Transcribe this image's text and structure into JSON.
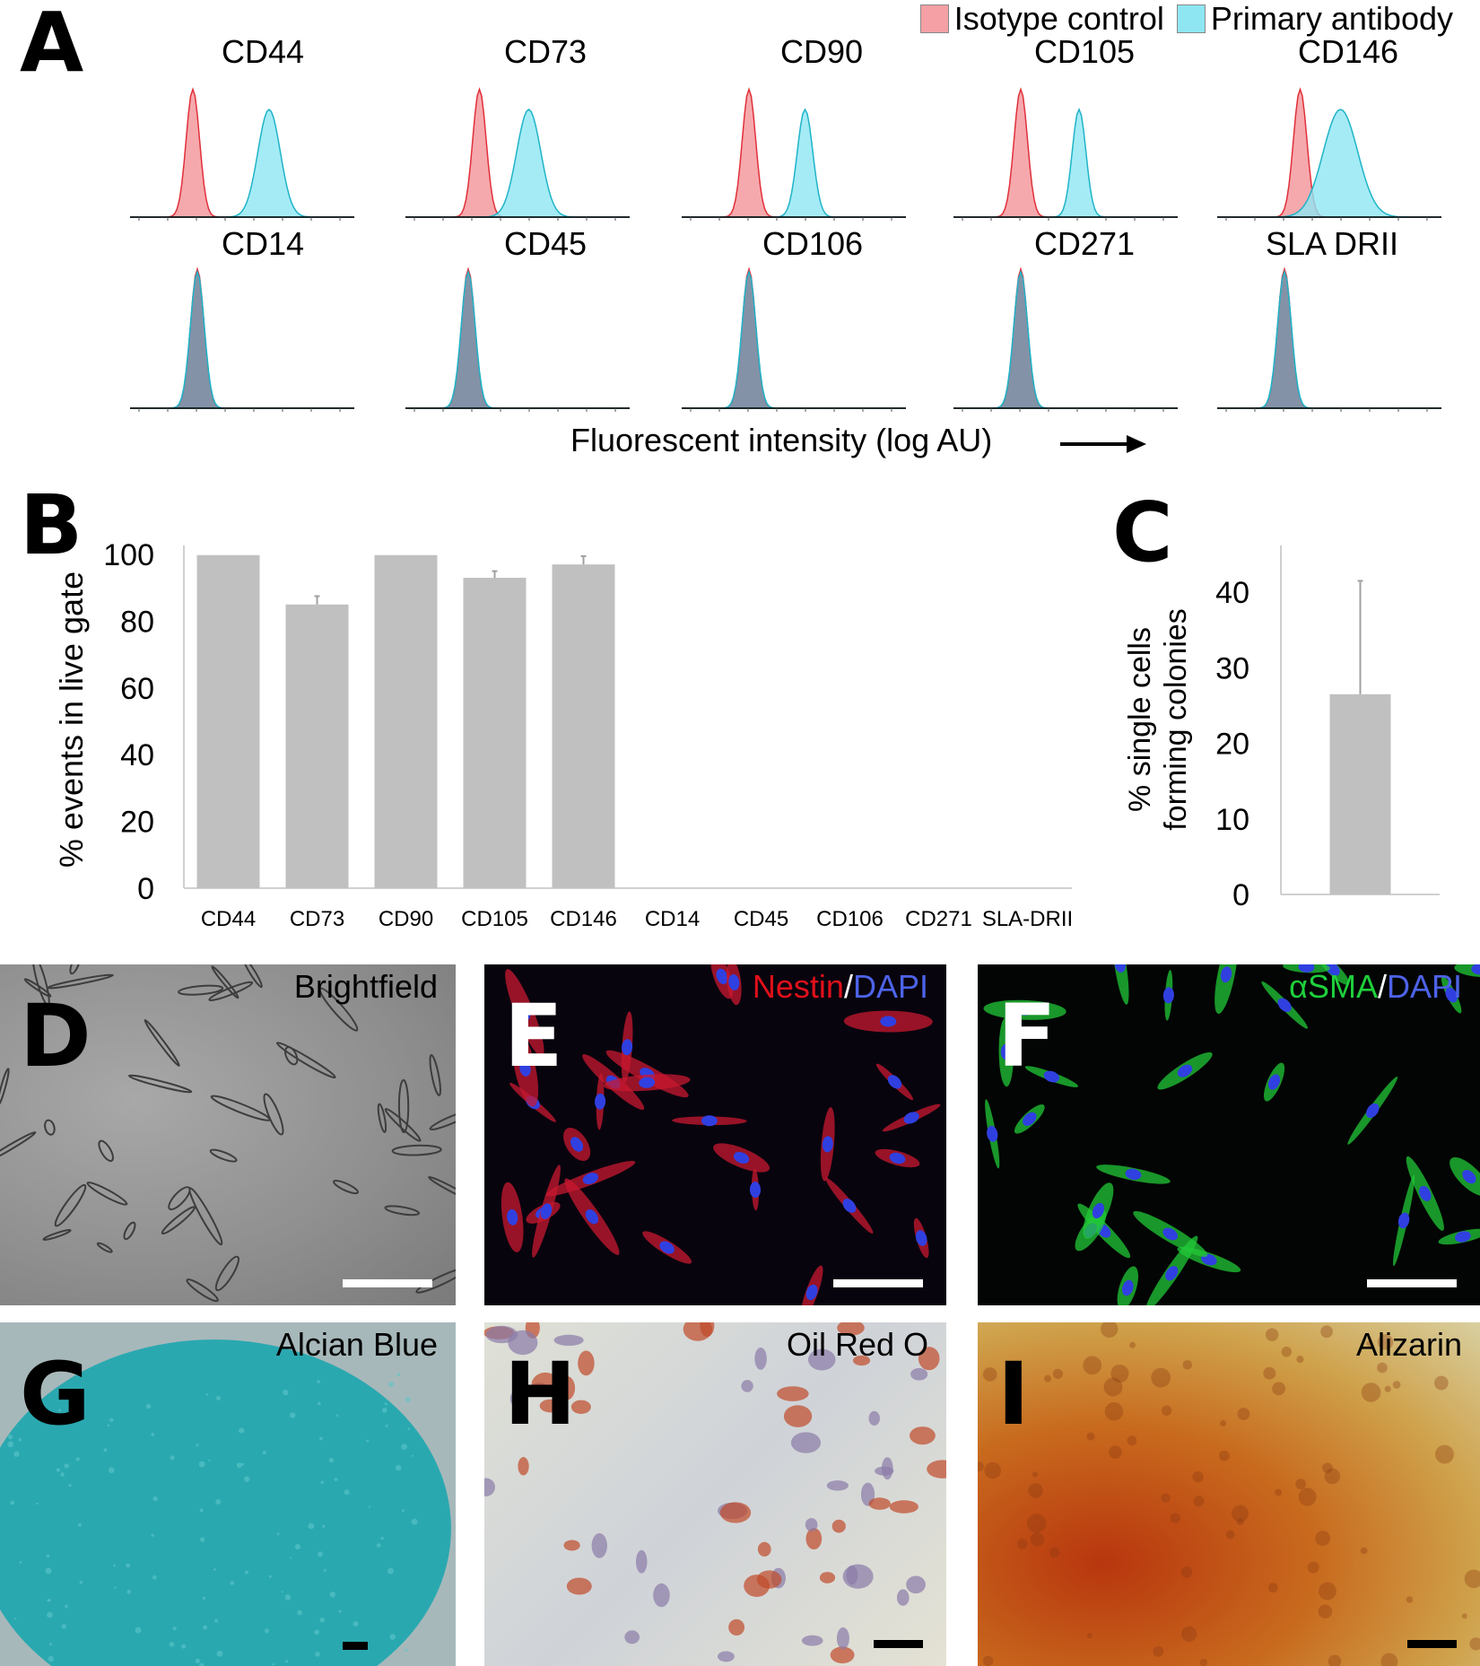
{
  "panel_letters": {
    "A": "A",
    "B": "B",
    "C": "C",
    "D": "D",
    "E": "E",
    "F": "F",
    "G": "G",
    "H": "H",
    "I": "I"
  },
  "legend": {
    "isotype": {
      "label": "Isotype control",
      "color": "#f4a0a4"
    },
    "primary": {
      "label": "Primary antibody",
      "color": "#8ee6f2"
    }
  },
  "histograms": {
    "row1": [
      {
        "label": "CD44",
        "iso_peak": 0.28,
        "pri_peak": 0.62,
        "pri_width": 0.13
      },
      {
        "label": "CD73",
        "iso_peak": 0.33,
        "pri_peak": 0.55,
        "pri_width": 0.14
      },
      {
        "label": "CD90",
        "iso_peak": 0.3,
        "pri_peak": 0.55,
        "pri_width": 0.09
      },
      {
        "label": "CD105",
        "iso_peak": 0.3,
        "pri_peak": 0.56,
        "pri_width": 0.08
      },
      {
        "label": "CD146",
        "iso_peak": 0.37,
        "pri_peak": 0.55,
        "pri_width": 0.2
      }
    ],
    "row2": [
      {
        "label": "CD14",
        "peak": 0.3
      },
      {
        "label": "CD45",
        "peak": 0.28
      },
      {
        "label": "CD106",
        "peak": 0.3
      },
      {
        "label": "CD271",
        "peak": 0.3
      },
      {
        "label": "SLA DRII",
        "peak": 0.3
      }
    ],
    "xlabel": "Fluorescent intensity (log AU)"
  },
  "chart_data": [
    {
      "type": "bar",
      "panel": "B",
      "categories": [
        "CD44",
        "CD73",
        "CD90",
        "CD105",
        "CD146",
        "CD14",
        "CD45",
        "CD106",
        "CD271",
        "SLA-DRII"
      ],
      "values": [
        99.8,
        85,
        99.8,
        93,
        97,
        0,
        0,
        0,
        0,
        0
      ],
      "errors": [
        0,
        2.5,
        0,
        2,
        2.5,
        0,
        0,
        0,
        0,
        0
      ],
      "ylabel": "% events in live gate",
      "ylim": [
        0,
        100
      ],
      "yticks": [
        0,
        20,
        40,
        60,
        80,
        100
      ],
      "bar_color": "#c0c0c0",
      "grid": false
    },
    {
      "type": "bar",
      "panel": "C",
      "categories": [
        ""
      ],
      "values": [
        26.5
      ],
      "errors": [
        15
      ],
      "ylabel": "% single cells forming colonies",
      "ylim": [
        0,
        45
      ],
      "yticks": [
        0,
        10,
        20,
        30,
        40
      ],
      "bar_color": "#c0c0c0",
      "grid": false
    }
  ],
  "image_panels": [
    {
      "letter": "D",
      "label_parts": [
        {
          "text": "Brightfield",
          "color": "#000000"
        }
      ],
      "style": "brightfield"
    },
    {
      "letter": "E",
      "label_parts": [
        {
          "text": "Nestin",
          "color": "#e0101a"
        },
        {
          "text": "/",
          "color": "#ffffff"
        },
        {
          "text": "DAPI",
          "color": "#4d63e8"
        }
      ],
      "style": "nestin"
    },
    {
      "letter": "F",
      "label_parts": [
        {
          "text": "αSMA",
          "color": "#1fcf3c"
        },
        {
          "text": "/",
          "color": "#ffffff"
        },
        {
          "text": "DAPI",
          "color": "#4d63e8"
        }
      ],
      "style": "sma"
    },
    {
      "letter": "G",
      "label_parts": [
        {
          "text": "Alcian Blue",
          "color": "#000000"
        }
      ],
      "style": "alcian"
    },
    {
      "letter": "H",
      "label_parts": [
        {
          "text": "Oil Red O",
          "color": "#000000"
        }
      ],
      "style": "oilred"
    },
    {
      "letter": "I",
      "label_parts": [
        {
          "text": "Alizarin",
          "color": "#000000"
        }
      ],
      "style": "alizarin"
    }
  ]
}
